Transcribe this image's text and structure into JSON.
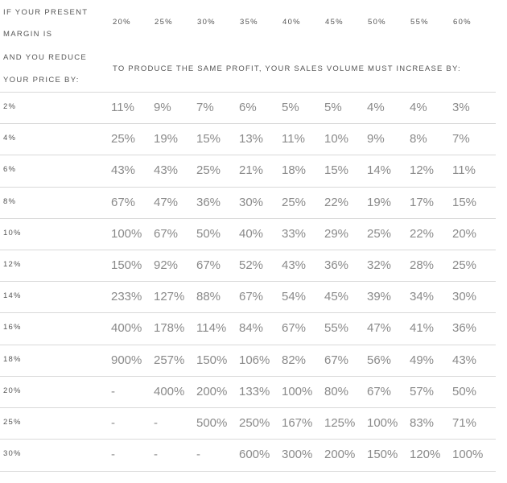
{
  "caption": {
    "line1": "IF YOUR PRESENT",
    "line2": "MARGIN IS",
    "line3": "AND YOU REDUCE",
    "line4": "YOUR PRICE BY:"
  },
  "margins": [
    "20%",
    "25%",
    "30%",
    "35%",
    "40%",
    "45%",
    "50%",
    "55%",
    "60%"
  ],
  "subheader": "TO PRODUCE THE SAME PROFIT, YOUR SALES VOLUME MUST INCREASE BY:",
  "rows": [
    {
      "reduction": "2%",
      "values": [
        "11%",
        "9%",
        "7%",
        "6%",
        "5%",
        "5%",
        "4%",
        "4%",
        "3%"
      ]
    },
    {
      "reduction": "4%",
      "values": [
        "25%",
        "19%",
        "15%",
        "13%",
        "11%",
        "10%",
        "9%",
        "8%",
        "7%"
      ]
    },
    {
      "reduction": "6%",
      "values": [
        "43%",
        "43%",
        "25%",
        "21%",
        "18%",
        "15%",
        "14%",
        "12%",
        "11%"
      ]
    },
    {
      "reduction": "8%",
      "values": [
        "67%",
        "47%",
        "36%",
        "30%",
        "25%",
        "22%",
        "19%",
        "17%",
        "15%"
      ]
    },
    {
      "reduction": "10%",
      "values": [
        "100%",
        "67%",
        "50%",
        "40%",
        "33%",
        "29%",
        "25%",
        "22%",
        "20%"
      ]
    },
    {
      "reduction": "12%",
      "values": [
        "150%",
        "92%",
        "67%",
        "52%",
        "43%",
        "36%",
        "32%",
        "28%",
        "25%"
      ]
    },
    {
      "reduction": "14%",
      "values": [
        "233%",
        "127%",
        "88%",
        "67%",
        "54%",
        "45%",
        "39%",
        "34%",
        "30%"
      ]
    },
    {
      "reduction": "16%",
      "values": [
        "400%",
        "178%",
        "114%",
        "84%",
        "67%",
        "55%",
        "47%",
        "41%",
        "36%"
      ]
    },
    {
      "reduction": "18%",
      "values": [
        "900%",
        "257%",
        "150%",
        "106%",
        "82%",
        "67%",
        "56%",
        "49%",
        "43%"
      ]
    },
    {
      "reduction": "20%",
      "values": [
        "-",
        "400%",
        "200%",
        "133%",
        "100%",
        "80%",
        "67%",
        "57%",
        "50%"
      ]
    },
    {
      "reduction": "25%",
      "values": [
        "-",
        "-",
        "500%",
        "250%",
        "167%",
        "125%",
        "100%",
        "83%",
        "71%"
      ]
    },
    {
      "reduction": "30%",
      "values": [
        "-",
        "-",
        "-",
        "600%",
        "300%",
        "200%",
        "150%",
        "120%",
        "100%"
      ]
    }
  ]
}
